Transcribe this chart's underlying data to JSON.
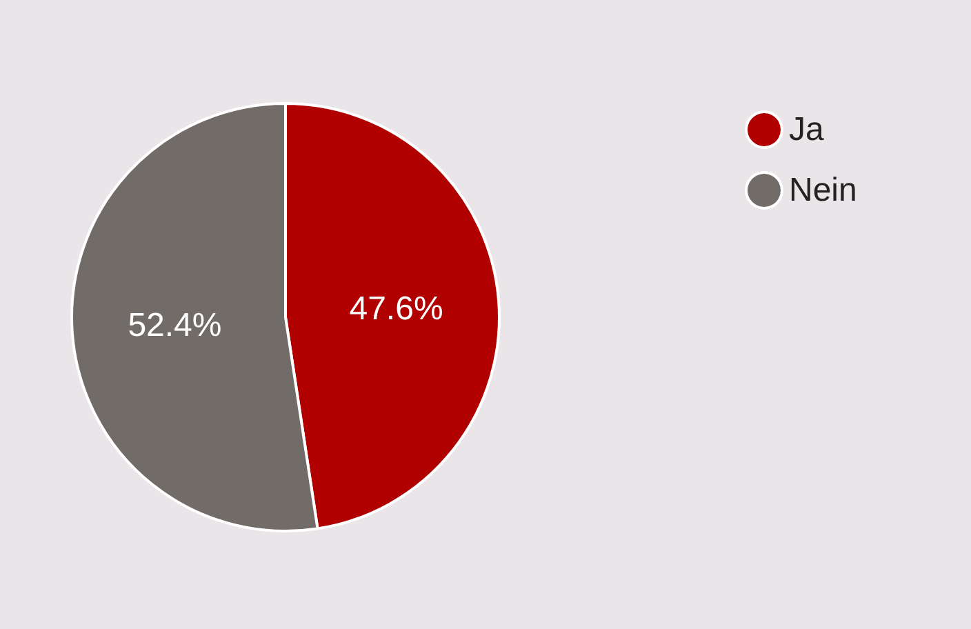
{
  "chart_data": {
    "type": "pie",
    "categories": [
      "Ja",
      "Nein"
    ],
    "values": [
      47.6,
      52.4
    ],
    "colors": [
      "#b00000",
      "#716c68"
    ],
    "value_labels": [
      "47.6%",
      "52.4%"
    ],
    "legend": "top right"
  }
}
